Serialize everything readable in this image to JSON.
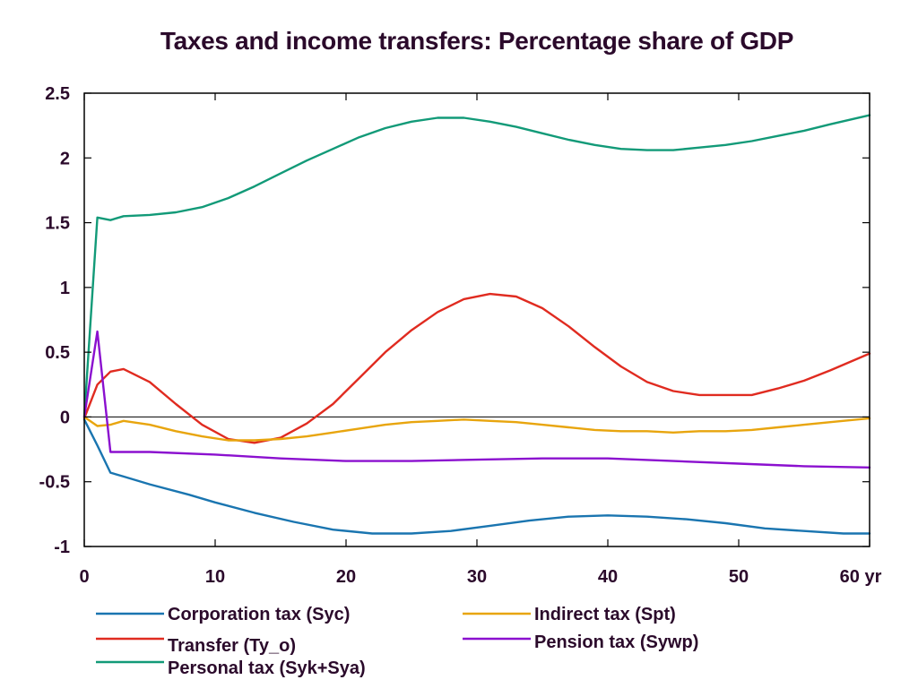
{
  "chart_data": {
    "type": "line",
    "title": "Taxes and income transfers: Percentage share of GDP",
    "xlabel": "",
    "ylabel": "",
    "x_unit_label": "yr",
    "xlim": [
      0,
      60
    ],
    "ylim": [
      -1,
      2.5
    ],
    "x_ticks": [
      0,
      10,
      20,
      30,
      40,
      50,
      60
    ],
    "x_tick_labels": [
      "0",
      "10",
      "20",
      "30",
      "40",
      "50",
      "60 yr"
    ],
    "y_ticks": [
      -1,
      -0.5,
      0,
      0.5,
      1,
      1.5,
      2,
      2.5
    ],
    "y_tick_labels": [
      "-1",
      "-0.5",
      "0",
      "0.5",
      "1",
      "1.5",
      "2",
      "2.5"
    ],
    "grid": false,
    "zero_line": true,
    "legend_position": "bottom",
    "series": [
      {
        "name": "Corporation tax (Syc)",
        "color": "#1a75b0",
        "x": [
          0,
          1,
          2,
          3,
          5,
          8,
          10,
          13,
          16,
          19,
          22,
          25,
          28,
          31,
          34,
          37,
          40,
          43,
          46,
          49,
          52,
          55,
          58,
          60
        ],
        "y": [
          -0.02,
          -0.22,
          -0.43,
          -0.46,
          -0.52,
          -0.6,
          -0.66,
          -0.74,
          -0.81,
          -0.87,
          -0.9,
          -0.9,
          -0.88,
          -0.84,
          -0.8,
          -0.77,
          -0.76,
          -0.77,
          -0.79,
          -0.82,
          -0.86,
          -0.88,
          -0.9,
          -0.9
        ]
      },
      {
        "name": "Transfer (Ty_o)",
        "color": "#e02b20",
        "x": [
          0,
          1,
          2,
          3,
          5,
          7,
          9,
          11,
          13,
          15,
          17,
          19,
          21,
          23,
          25,
          27,
          29,
          31,
          33,
          35,
          37,
          39,
          41,
          43,
          45,
          47,
          49,
          51,
          53,
          55,
          57,
          60
        ],
        "y": [
          -0.01,
          0.25,
          0.35,
          0.37,
          0.27,
          0.1,
          -0.06,
          -0.17,
          -0.2,
          -0.16,
          -0.05,
          0.1,
          0.3,
          0.5,
          0.67,
          0.81,
          0.91,
          0.95,
          0.93,
          0.84,
          0.7,
          0.54,
          0.39,
          0.27,
          0.2,
          0.17,
          0.17,
          0.17,
          0.22,
          0.28,
          0.36,
          0.49
        ]
      },
      {
        "name": "Personal tax (Syk+Sya)",
        "color": "#129a78",
        "x": [
          0,
          1,
          2,
          3,
          5,
          7,
          9,
          11,
          13,
          15,
          17,
          19,
          21,
          23,
          25,
          27,
          29,
          31,
          33,
          35,
          37,
          39,
          41,
          43,
          45,
          47,
          49,
          51,
          53,
          55,
          57,
          60
        ],
        "y": [
          0.0,
          1.54,
          1.52,
          1.55,
          1.56,
          1.58,
          1.62,
          1.69,
          1.78,
          1.88,
          1.98,
          2.07,
          2.16,
          2.23,
          2.28,
          2.31,
          2.31,
          2.28,
          2.24,
          2.19,
          2.14,
          2.1,
          2.07,
          2.06,
          2.06,
          2.08,
          2.1,
          2.13,
          2.17,
          2.21,
          2.26,
          2.33
        ]
      },
      {
        "name": "Indirect tax (Spt)",
        "color": "#e8a50e",
        "x": [
          0,
          1,
          2,
          3,
          5,
          7,
          9,
          11,
          13,
          15,
          17,
          19,
          21,
          23,
          25,
          27,
          29,
          31,
          33,
          35,
          37,
          39,
          41,
          43,
          45,
          47,
          49,
          51,
          53,
          55,
          57,
          60
        ],
        "y": [
          0.0,
          -0.07,
          -0.06,
          -0.03,
          -0.06,
          -0.11,
          -0.15,
          -0.18,
          -0.18,
          -0.17,
          -0.15,
          -0.12,
          -0.09,
          -0.06,
          -0.04,
          -0.03,
          -0.02,
          -0.03,
          -0.04,
          -0.06,
          -0.08,
          -0.1,
          -0.11,
          -0.11,
          -0.12,
          -0.11,
          -0.11,
          -0.1,
          -0.08,
          -0.06,
          -0.04,
          -0.01
        ]
      },
      {
        "name": "Pension tax (Sywp)",
        "color": "#8b10cf",
        "x": [
          0,
          1,
          2,
          3,
          5,
          10,
          15,
          20,
          25,
          30,
          35,
          40,
          45,
          50,
          55,
          60
        ],
        "y": [
          0.0,
          0.66,
          -0.27,
          -0.27,
          -0.27,
          -0.29,
          -0.32,
          -0.34,
          -0.34,
          -0.33,
          -0.32,
          -0.32,
          -0.34,
          -0.36,
          -0.38,
          -0.39
        ]
      }
    ]
  }
}
